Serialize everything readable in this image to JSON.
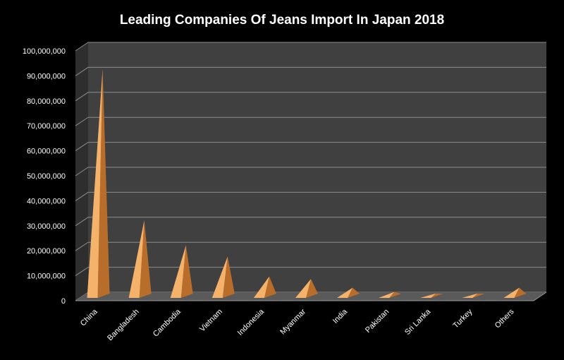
{
  "chart_data": {
    "type": "bar",
    "title": "Leading Companies Of Jeans Import In Japan 2018",
    "xlabel": "",
    "ylabel": "",
    "categories": [
      "China",
      "Bangladesh",
      "Cambodia",
      "Vietnam",
      "Indonesia",
      "Myanmar",
      "India",
      "Pakistan",
      "Sri Lanka",
      "Turkey",
      "Others"
    ],
    "values": [
      91000000,
      30500000,
      20500000,
      16000000,
      8000000,
      7000000,
      3500000,
      1800000,
      1200000,
      1200000,
      3500000
    ],
    "ylim": [
      0,
      100000000
    ],
    "yticks": [
      "0",
      "10,000,000",
      "20,000,000",
      "30,000,000",
      "40,000,000",
      "50,000,000",
      "60,000,000",
      "70,000,000",
      "80,000,000",
      "90,000,000",
      "100,000,000"
    ],
    "grid": true,
    "legend": "none",
    "colors": {
      "background": "#000000",
      "plot_wall": "#404040",
      "grid": "#8c8c8c",
      "bar_light": "#f5b26b",
      "bar_dark": "#b86d2a",
      "text": "#ffffff"
    }
  }
}
